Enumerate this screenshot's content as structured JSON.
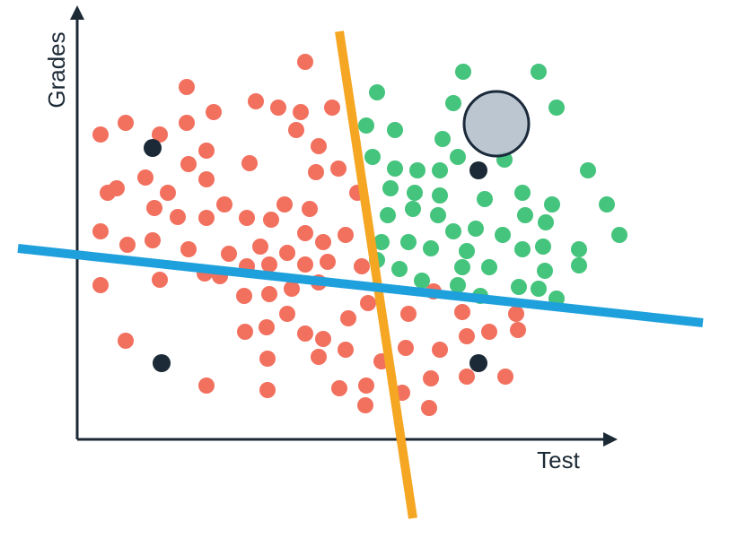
{
  "axes": {
    "y_label": "Grades",
    "x_label": "Test"
  }
}
